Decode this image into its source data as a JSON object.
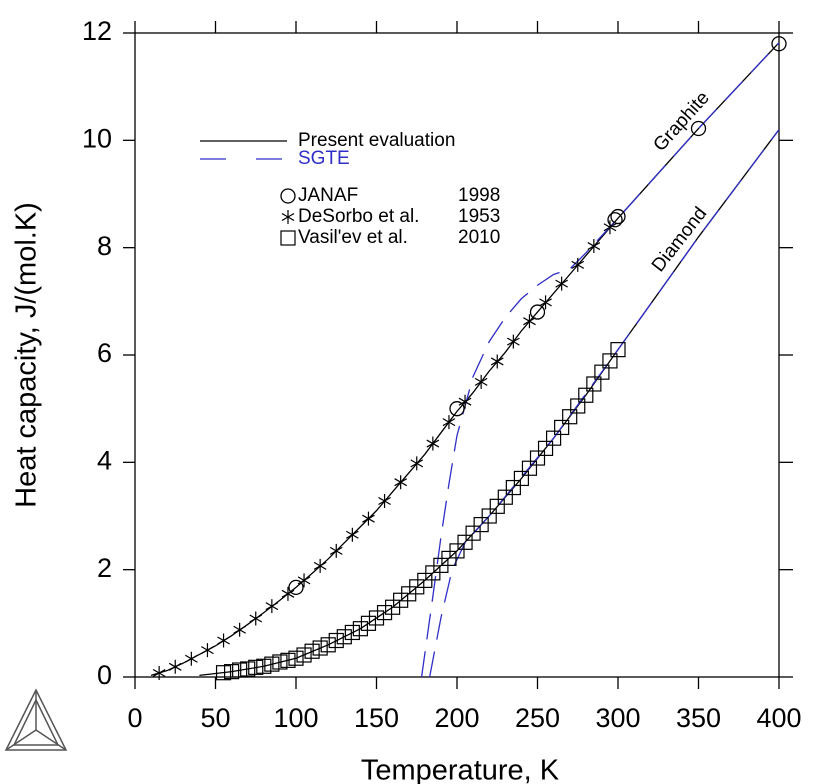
{
  "chart_data": {
    "type": "line",
    "x_label": "Temperature, K",
    "y_label": "Heat capacity, J/(mol.K)",
    "xlim": [
      0,
      400
    ],
    "xticks": [
      0,
      50,
      100,
      150,
      200,
      250,
      300,
      350,
      400
    ],
    "ylim": [
      0,
      12
    ],
    "yticks": [
      0,
      2,
      4,
      6,
      8,
      10,
      12
    ],
    "annotations": [
      "Graphite",
      "Diamond"
    ],
    "series": [
      {
        "name": "Present evaluation",
        "color": "#000000",
        "style": "solid",
        "x": [
          10,
          20,
          30,
          40,
          50,
          60,
          70,
          80,
          90,
          100,
          110,
          120,
          130,
          140,
          150,
          160,
          170,
          180,
          190,
          200,
          210,
          220,
          230,
          240,
          250,
          260,
          270,
          280,
          290,
          300,
          350,
          400
        ],
        "values": [
          0.03,
          0.12,
          0.26,
          0.42,
          0.58,
          0.77,
          0.98,
          1.2,
          1.43,
          1.67,
          1.93,
          2.2,
          2.5,
          2.8,
          3.1,
          3.45,
          3.8,
          4.15,
          4.55,
          4.95,
          5.3,
          5.7,
          6.05,
          6.45,
          6.8,
          7.15,
          7.5,
          7.85,
          8.2,
          8.55,
          10.22,
          11.82
        ]
      },
      {
        "color": "#000000",
        "style": "solid",
        "x": [
          40,
          60,
          80,
          100,
          120,
          140,
          160,
          180,
          200,
          220,
          240,
          260,
          280,
          300,
          350,
          400
        ],
        "values": [
          0.03,
          0.1,
          0.2,
          0.35,
          0.6,
          0.9,
          1.3,
          1.8,
          2.35,
          3.0,
          3.7,
          4.45,
          5.25,
          6.1,
          8.2,
          10.2
        ]
      },
      {
        "name": "SGTE",
        "color": "#2f2fc8",
        "style": "dashed",
        "x": [
          178,
          185,
          190,
          195,
          200,
          210,
          220,
          230,
          240,
          250,
          260,
          270,
          280,
          300,
          350,
          400
        ],
        "values": [
          0,
          1.5,
          2.6,
          3.6,
          4.5,
          5.6,
          6.25,
          6.7,
          7.05,
          7.3,
          7.5,
          7.6,
          7.9,
          8.55,
          10.22,
          11.82
        ]
      },
      {
        "color": "#2f2fc8",
        "style": "dashed",
        "x": [
          183,
          190,
          197,
          205,
          220,
          260,
          300,
          350,
          400
        ],
        "values": [
          0,
          1.1,
          2.0,
          2.5,
          3.0,
          4.45,
          6.1,
          8.2,
          10.2
        ]
      },
      {
        "name": "JANAF",
        "year": "1998",
        "color": "#000000",
        "style": "marker",
        "marker": "circle",
        "x": [
          100,
          200,
          250,
          298.15,
          300,
          350,
          400
        ],
        "values": [
          1.67,
          5.0,
          6.8,
          8.52,
          8.58,
          10.22,
          11.8
        ]
      },
      {
        "name": "DeSorbo et al.",
        "year": "1953",
        "color": "#000000",
        "style": "marker",
        "marker": "star",
        "x": [
          15,
          25,
          35,
          45,
          55,
          65,
          75,
          85,
          95,
          105,
          115,
          125,
          135,
          145,
          155,
          165,
          175,
          185,
          195,
          205,
          215,
          225,
          235,
          245,
          255,
          265,
          275,
          285,
          295
        ],
        "values": [
          0.075,
          0.19,
          0.34,
          0.5,
          0.68,
          0.88,
          1.09,
          1.32,
          1.55,
          1.8,
          2.07,
          2.35,
          2.65,
          2.95,
          3.28,
          3.63,
          3.98,
          4.35,
          4.75,
          5.13,
          5.5,
          5.88,
          6.25,
          6.63,
          6.98,
          7.33,
          7.68,
          8.03,
          8.38
        ]
      },
      {
        "name": "Vasil'ev et al.",
        "year": "2010",
        "color": "#000000",
        "style": "marker",
        "marker": "square",
        "x": [
          55,
          60,
          65,
          70,
          75,
          80,
          85,
          90,
          95,
          100,
          105,
          110,
          115,
          120,
          125,
          130,
          135,
          140,
          145,
          150,
          155,
          160,
          165,
          170,
          175,
          180,
          185,
          190,
          195,
          200,
          205,
          210,
          215,
          220,
          225,
          230,
          235,
          240,
          245,
          250,
          255,
          260,
          265,
          270,
          275,
          280,
          285,
          290,
          295,
          300
        ],
        "values": [
          0.08,
          0.1,
          0.13,
          0.15,
          0.18,
          0.2,
          0.24,
          0.28,
          0.31,
          0.35,
          0.41,
          0.48,
          0.54,
          0.6,
          0.68,
          0.75,
          0.83,
          0.9,
          1.0,
          1.1,
          1.2,
          1.3,
          1.43,
          1.55,
          1.68,
          1.8,
          1.94,
          2.08,
          2.21,
          2.35,
          2.51,
          2.68,
          2.84,
          3.0,
          3.18,
          3.35,
          3.53,
          3.7,
          3.89,
          4.08,
          4.26,
          4.45,
          4.65,
          4.85,
          5.05,
          5.25,
          5.46,
          5.68,
          5.89,
          6.1
        ]
      }
    ]
  }
}
